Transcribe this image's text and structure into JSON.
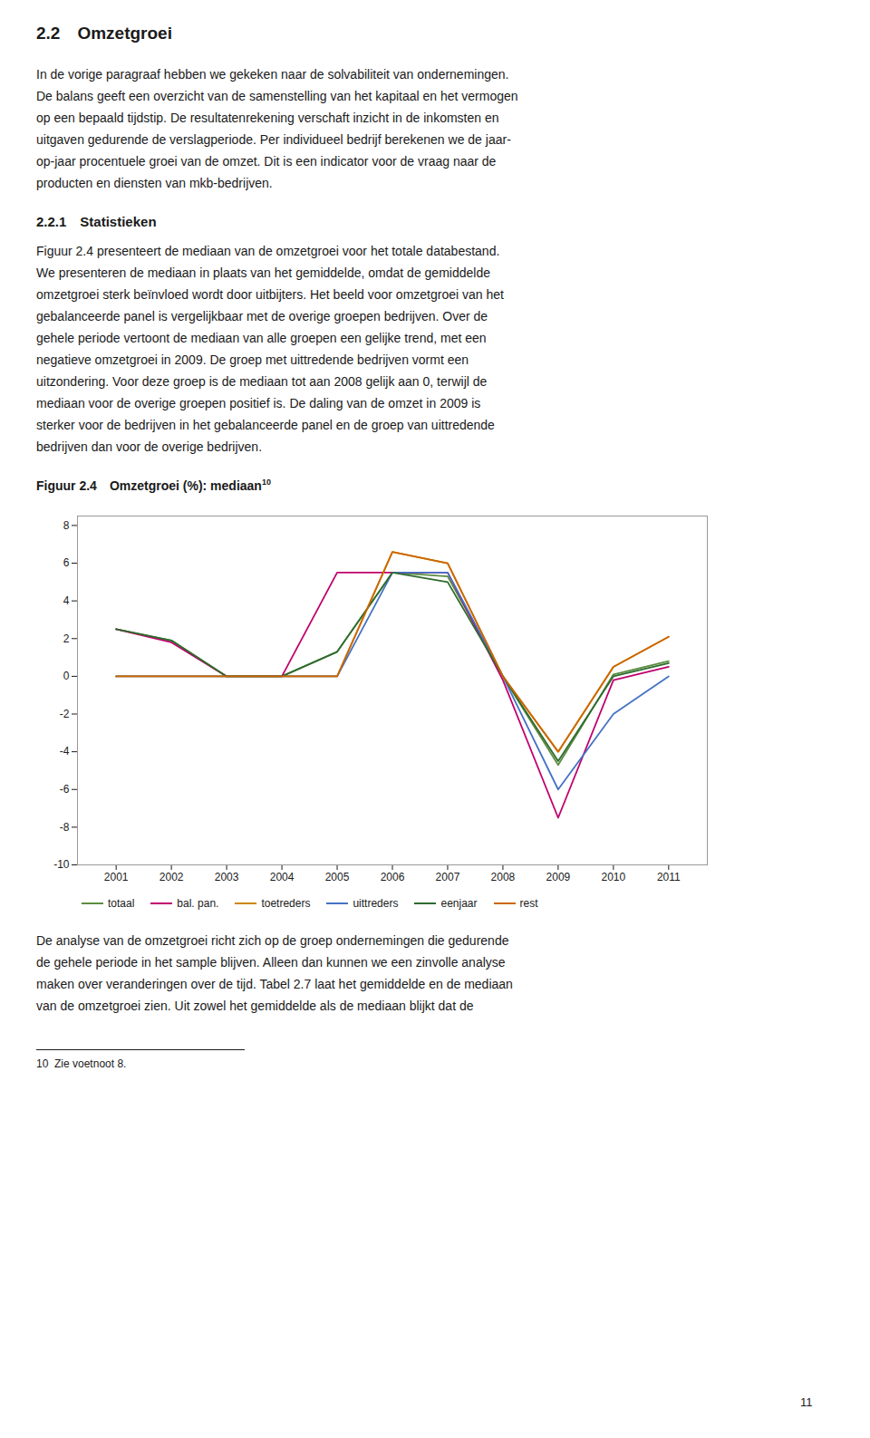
{
  "title_number": "2.2",
  "title_word": "Omzetgroei",
  "para1_lines": [
    "In de vorige paragraaf hebben we gekeken naar de solvabiliteit van ondernemingen.",
    "De balans geeft een overzicht van de samenstelling van het kapitaal en het vermogen",
    "op een bepaald tijdstip. De resultatenrekening verschaft inzicht in de inkomsten en",
    "uitgaven gedurende de verslagperiode. Per individueel bedrijf berekenen we de jaar-",
    "op-jaar procentuele groei van de omzet. Dit is een indicator voor de vraag naar de",
    "producten en diensten van mkb-bedrijven."
  ],
  "section_number": "2.2.1",
  "section_word": "Statistieken",
  "para2_lines": [
    "Figuur 2.4 presenteert de mediaan van de omzetgroei voor het totale databestand.",
    "We presenteren de mediaan in plaats van het gemiddelde, omdat de gemiddelde",
    "omzetgroei sterk beïnvloed wordt door uitbijters. Het beeld voor omzetgroei van het",
    "gebalanceerde panel is vergelijkbaar met de overige groepen bedrijven. Over de",
    "gehele periode vertoont de mediaan van alle groepen een gelijke trend, met een",
    "negatieve omzetgroei in 2009. De groep met uittredende bedrijven vormt een",
    "uitzondering. Voor deze groep is de mediaan tot aan 2008 gelijk aan 0, terwijl de",
    "mediaan voor de overige groepen positief is. De daling van de omzet in 2009 is",
    "sterker voor de bedrijven in het gebalanceerde panel en de groep van uittredende",
    "bedrijven dan voor de overige bedrijven."
  ],
  "chart_data": {
    "type": "line",
    "figure_label": "Figuur 2.4",
    "title": "Omzetgroei (%): mediaan",
    "title_superscript": "10",
    "x": [
      2001,
      2002,
      2003,
      2004,
      2005,
      2006,
      2007,
      2008,
      2009,
      2010,
      2011
    ],
    "series": [
      {
        "name": "totaal",
        "color": "#5B8C3E",
        "values": [
          2.5,
          1.9,
          0.0,
          0.0,
          1.3,
          5.5,
          5.3,
          0.0,
          -4.7,
          0.1,
          0.8
        ]
      },
      {
        "name": "bal. pan.",
        "color": "#C0006E",
        "values": [
          2.5,
          1.8,
          0.0,
          0.0,
          5.5,
          5.5,
          5.5,
          -0.2,
          -7.5,
          -0.2,
          0.5
        ]
      },
      {
        "name": "toetreders",
        "color": "#CC8800",
        "values": [
          0.0,
          0.0,
          0.0,
          0.0,
          0.0,
          6.6,
          6.0,
          0.0,
          -4.0,
          0.5,
          2.1
        ]
      },
      {
        "name": "uittreders",
        "color": "#4472C4",
        "values": [
          0.0,
          0.0,
          0.0,
          0.0,
          0.0,
          5.5,
          5.5,
          0.0,
          -6.0,
          -2.0,
          0.0
        ]
      },
      {
        "name": "eenjaar",
        "color": "#2E6B2E",
        "values": [
          2.5,
          1.9,
          0.0,
          0.0,
          1.3,
          5.5,
          5.0,
          0.0,
          -4.5,
          0.0,
          0.7
        ]
      },
      {
        "name": "rest",
        "color": "#CC6600",
        "values": [
          0.0,
          0.0,
          0.0,
          0.0,
          0.0,
          6.6,
          6.0,
          0.0,
          -4.0,
          0.5,
          2.1
        ]
      }
    ],
    "xlim": [
      2000.3,
      2011.7
    ],
    "xticks": [
      2001,
      2002,
      2003,
      2004,
      2005,
      2006,
      2007,
      2008,
      2009,
      2010,
      2011
    ],
    "ylim": [
      -10,
      8.5
    ],
    "yticks": [
      -10,
      -8,
      -6,
      -4,
      -2,
      0,
      2,
      4,
      6,
      8
    ],
    "grid": false,
    "legend": "bottom"
  },
  "para3_lines": [
    "De analyse van de omzetgroei richt zich op de groep ondernemingen die gedurende",
    "de gehele periode in het sample blijven. Alleen dan kunnen we een zinvolle analyse",
    "maken over veranderingen over de tijd. Tabel 2.7 laat het gemiddelde en de mediaan",
    "van de omzetgroei zien. Uit zowel het gemiddelde als de mediaan blijkt dat de"
  ],
  "footnote": "10  Zie voetnoot 8.",
  "page_number": "11"
}
